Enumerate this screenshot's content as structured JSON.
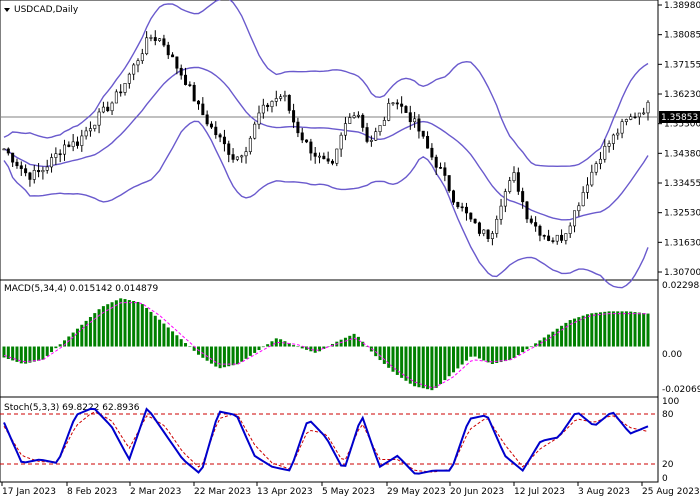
{
  "chart": {
    "symbol_title": "USDCAD,Daily",
    "price_axis": [
      "1.38980",
      "1.38085",
      "1.37155",
      "1.36230",
      "1.35300",
      "1.34380",
      "1.33455",
      "1.32530",
      "1.31630",
      "1.30700"
    ],
    "current_price": "1.35853",
    "macd_title": "MACD(5,34,4) 0.015142 0.014879",
    "macd_axis": [
      "0.022988",
      "0.00",
      "-0.020691"
    ],
    "stoch_title": "Stoch(5,3,3) 69.8222 62.8936",
    "stoch_axis": [
      "100",
      "80",
      "20",
      "0"
    ],
    "dates": [
      "17 Jan 2023",
      "8 Feb 2023",
      "2 Mar 2023",
      "22 Mar 2023",
      "13 Apr 2023",
      "5 May 2023",
      "29 May 2023",
      "20 Jun 2023",
      "12 Jul 2023",
      "3 Aug 2023",
      "25 Aug 2023"
    ],
    "colors": {
      "candle": "#000000",
      "bollinger": "#6a5acd",
      "macd_hist": "#008000",
      "macd_signal": "#ff00ff",
      "stoch_main": "#0000cc",
      "stoch_signal": "#cc0000",
      "current_price_bg": "#000000",
      "current_price_text": "#ffffff"
    }
  },
  "chart_data": [
    {
      "type": "candlestick",
      "title": "USDCAD,Daily",
      "ylim": [
        1.307,
        1.3898
      ],
      "close_approx": [
        1.3452,
        1.341,
        1.3368,
        1.338,
        1.342,
        1.3465,
        1.347,
        1.352,
        1.356,
        1.36,
        1.366,
        1.373,
        1.38,
        1.379,
        1.372,
        1.366,
        1.358,
        1.352,
        1.347,
        1.342,
        1.346,
        1.356,
        1.36,
        1.362,
        1.352,
        1.346,
        1.342,
        1.339,
        1.352,
        1.358,
        1.347,
        1.352,
        1.361,
        1.357,
        1.352,
        1.344,
        1.338,
        1.33,
        1.325,
        1.32,
        1.318,
        1.33,
        1.337,
        1.325,
        1.32,
        1.317,
        1.318,
        1.326,
        1.335,
        1.343,
        1.348,
        1.353,
        1.356,
        1.3585
      ],
      "current": 1.35853
    },
    {
      "type": "line",
      "title": "MACD(5,34,4) 0.015142 0.014879",
      "series": [
        {
          "name": "MACD",
          "values": [
            -0.005,
            -0.008,
            -0.006,
            0.002,
            0.01,
            0.018,
            0.022,
            0.02,
            0.012,
            0.004,
            -0.004,
            -0.01,
            -0.008,
            -0.002,
            0.004,
            0.0,
            -0.003,
            0.002,
            0.006,
            -0.004,
            -0.012,
            -0.018,
            -0.02,
            -0.012,
            -0.004,
            -0.008,
            -0.006,
            0.0,
            0.006,
            0.012,
            0.015,
            0.016,
            0.016,
            0.015
          ]
        },
        {
          "name": "Signal",
          "values": [
            -0.004,
            -0.007,
            -0.006,
            0.0,
            0.008,
            0.015,
            0.02,
            0.02,
            0.014,
            0.006,
            -0.002,
            -0.008,
            -0.008,
            -0.003,
            0.002,
            0.001,
            -0.002,
            0.001,
            0.004,
            -0.002,
            -0.01,
            -0.016,
            -0.019,
            -0.014,
            -0.006,
            -0.007,
            -0.006,
            -0.001,
            0.004,
            0.01,
            0.014,
            0.015,
            0.015,
            0.0149
          ]
        }
      ],
      "ylim": [
        -0.020691,
        0.022988
      ],
      "values_current": [
        0.015142,
        0.014879
      ]
    },
    {
      "type": "line",
      "title": "Stoch(5,3,3) 69.8222 62.8936",
      "series": [
        {
          "name": "Main",
          "values": [
            75,
            20,
            25,
            20,
            85,
            95,
            70,
            25,
            95,
            60,
            25,
            5,
            90,
            85,
            30,
            15,
            10,
            80,
            55,
            10,
            85,
            15,
            30,
            5,
            10,
            10,
            80,
            85,
            30,
            10,
            50,
            55,
            90,
            70,
            90,
            60,
            69.8
          ]
        },
        {
          "name": "Signal",
          "values": [
            70,
            30,
            22,
            22,
            70,
            90,
            78,
            40,
            85,
            70,
            35,
            12,
            80,
            88,
            45,
            20,
            12,
            65,
            60,
            20,
            75,
            25,
            25,
            10,
            8,
            12,
            65,
            82,
            45,
            15,
            40,
            55,
            80,
            75,
            85,
            68,
            62.9
          ]
        }
      ],
      "levels": [
        80,
        20
      ],
      "ylim": [
        0,
        100
      ],
      "values_current": [
        69.8222,
        62.8936
      ]
    }
  ]
}
